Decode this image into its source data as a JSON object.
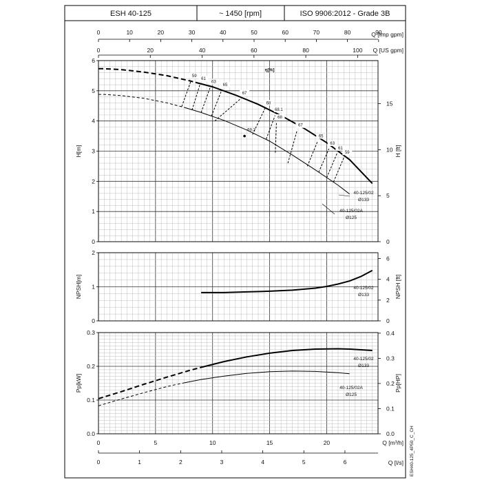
{
  "header": {
    "model": "ESH 40-125",
    "speed": "~ 1450 [rpm]",
    "standard": "ISO 9906:2012 - Grade 3B"
  },
  "side_code": "ESH40-125_4P50_C_CH",
  "top_axes": {
    "imp_gpm": {
      "label": "Q [Imp gpm]",
      "ticks": [
        0,
        10,
        20,
        30,
        40,
        50,
        60,
        70,
        80,
        90
      ]
    },
    "us_gpm": {
      "label": "Q [US gpm]",
      "ticks": [
        0,
        20,
        40,
        60,
        80,
        100
      ]
    }
  },
  "bottom_axes": {
    "m3h": {
      "label": "Q [m³/h]",
      "ticks": [
        0,
        5,
        10,
        15,
        20
      ]
    },
    "ls": {
      "label": "Q [l/s]",
      "ticks": [
        0,
        1,
        2,
        3,
        4,
        5,
        6
      ]
    }
  },
  "chart_data": [
    {
      "type": "line",
      "panel": "head",
      "ylabel": "H[m]",
      "y2label": "H [ft]",
      "xlabel": "Q [m³/h]",
      "ylim": [
        0,
        6
      ],
      "y2ticks": [
        0,
        5,
        10,
        15
      ],
      "xlim": [
        0,
        24.5
      ],
      "grid": true,
      "eta_label": "η[%]",
      "series": [
        {
          "name": "40-125/02 Ø133",
          "style": "thick",
          "dashed_x": [
            0,
            0.5,
            2,
            4,
            6,
            8,
            8.5
          ],
          "dashed_y": [
            5.73,
            5.73,
            5.7,
            5.62,
            5.5,
            5.33,
            5.28
          ],
          "x": [
            8.5,
            10,
            12,
            14,
            16,
            18,
            20,
            22,
            24
          ],
          "y": [
            5.28,
            5.13,
            4.86,
            4.55,
            4.18,
            3.76,
            3.28,
            2.72,
            1.93
          ]
        },
        {
          "name": "40-125/02A Ø125",
          "style": "thin",
          "dashed_x": [
            0,
            0.5,
            2,
            4,
            6,
            7.5
          ],
          "dashed_y": [
            4.88,
            4.88,
            4.84,
            4.75,
            4.6,
            4.45
          ],
          "x": [
            7.5,
            9,
            11,
            13,
            15,
            17,
            19,
            21,
            22
          ],
          "y": [
            4.45,
            4.28,
            4.02,
            3.7,
            3.33,
            2.87,
            2.38,
            1.87,
            1.58
          ]
        }
      ],
      "efficiency_lines": [
        {
          "label": "59",
          "x1": 7.3,
          "y1": 4.48,
          "x2": 8.1,
          "y2": 5.32
        },
        {
          "label": "61",
          "x1": 8.2,
          "y1": 4.36,
          "x2": 8.9,
          "y2": 5.22
        },
        {
          "label": "63",
          "x1": 9.0,
          "y1": 4.28,
          "x2": 9.8,
          "y2": 5.12
        },
        {
          "label": "65",
          "x1": 9.9,
          "y1": 4.16,
          "x2": 10.8,
          "y2": 5.02
        },
        {
          "label": "67",
          "x1": 10.2,
          "y1": 4.0,
          "x2": 12.5,
          "y2": 4.75
        },
        {
          "label": "68",
          "x1": 13.5,
          "y1": 3.55,
          "x2": 14.6,
          "y2": 4.42
        },
        {
          "label": "68.1",
          "x1": 14.7,
          "y1": 3.4,
          "x2": 15.5,
          "y2": 4.2
        },
        {
          "label": "68",
          "x1": 15.5,
          "y1": 2.95,
          "x2": 15.6,
          "y2": 3.95
        },
        {
          "label": "67",
          "x1": 16.6,
          "y1": 2.6,
          "x2": 17.4,
          "y2": 3.68
        },
        {
          "label": "65",
          "x1": 18.3,
          "y1": 2.5,
          "x2": 19.2,
          "y2": 3.32
        },
        {
          "label": "63",
          "x1": 19.3,
          "y1": 2.3,
          "x2": 20.2,
          "y2": 3.08
        },
        {
          "label": "61",
          "x1": 20.0,
          "y1": 2.12,
          "x2": 20.9,
          "y2": 2.92
        },
        {
          "label": "59",
          "x1": 20.6,
          "y1": 1.98,
          "x2": 21.5,
          "y2": 2.78
        }
      ],
      "bep": {
        "label": "69.2",
        "x": 12.8,
        "y": 3.5
      }
    },
    {
      "type": "line",
      "panel": "npsh",
      "ylabel": "NPSH[m]",
      "y2label": "NPSH [ft]",
      "ylim": [
        0,
        2
      ],
      "y2ticks": [
        0,
        2,
        4,
        6
      ],
      "xlim": [
        0,
        24.5
      ],
      "grid": true,
      "series": [
        {
          "name": "40-125/02 Ø133",
          "style": "thick",
          "x": [
            9,
            11,
            13,
            15,
            17,
            19,
            20,
            21,
            22,
            23,
            24
          ],
          "y": [
            0.83,
            0.83,
            0.85,
            0.87,
            0.9,
            0.96,
            1.01,
            1.08,
            1.17,
            1.3,
            1.48
          ]
        }
      ]
    },
    {
      "type": "line",
      "panel": "power",
      "ylabel": "Pp[kW]",
      "y2label": "Pp[HP]",
      "xlabel": "Q [m³/h]",
      "ylim": [
        0,
        0.3
      ],
      "y2ticks": [
        0,
        0.1,
        0.2,
        0.3,
        0.4
      ],
      "xlim": [
        0,
        24.5
      ],
      "grid": true,
      "series": [
        {
          "name": "40-125/02 Ø133",
          "style": "thick",
          "dashed_x": [
            0,
            2,
            4,
            6,
            8,
            9
          ],
          "dashed_y": [
            0.104,
            0.125,
            0.147,
            0.168,
            0.188,
            0.197
          ],
          "x": [
            9,
            11,
            13,
            15,
            17,
            19,
            21,
            22,
            24
          ],
          "y": [
            0.197,
            0.214,
            0.228,
            0.239,
            0.247,
            0.251,
            0.252,
            0.251,
            0.247
          ]
        },
        {
          "name": "40-125/02A Ø125",
          "style": "thin",
          "dashed_x": [
            0,
            2,
            4,
            6,
            7.5
          ],
          "dashed_y": [
            0.083,
            0.103,
            0.122,
            0.14,
            0.151
          ],
          "x": [
            7.5,
            9,
            11,
            13,
            15,
            17,
            19,
            21,
            22
          ],
          "y": [
            0.151,
            0.161,
            0.171,
            0.179,
            0.184,
            0.186,
            0.185,
            0.181,
            0.178
          ]
        }
      ]
    }
  ]
}
